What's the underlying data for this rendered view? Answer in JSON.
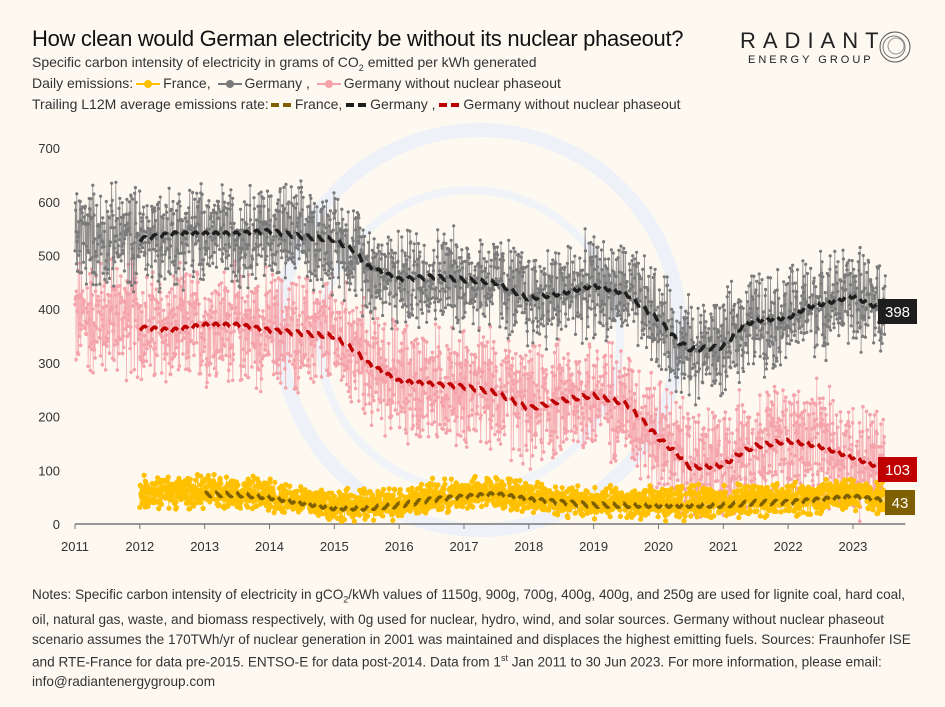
{
  "header": {
    "title": "How clean would German electricity be without its nuclear phaseout?",
    "subtitle_pre": "Specific carbon intensity of electricity in grams of CO",
    "subtitle_sub": "2",
    "subtitle_post": " emitted per kWh generated",
    "daily_label": "Daily emissions:",
    "daily_items": [
      "France,",
      "Germany ,",
      "Germany without nuclear phaseout"
    ],
    "trailing_label": "Trailing L12M average emissions rate:",
    "trailing_items": [
      "France,",
      "Germany ,",
      "Germany without nuclear phaseout"
    ]
  },
  "logo": {
    "line1": "RADIANT",
    "line2": "ENERGY GROUP"
  },
  "chart_data": {
    "type": "line",
    "title": "How clean would German electricity be without its nuclear phaseout?",
    "ylabel": "",
    "xlabel": "",
    "ylim": [
      0,
      700
    ],
    "xlim": [
      2011,
      2023.5
    ],
    "y_ticks": [
      "0",
      "100",
      "200",
      "300",
      "400",
      "500",
      "600",
      "700"
    ],
    "x_ticks": [
      "2011",
      "2012",
      "2013",
      "2014",
      "2015",
      "2016",
      "2017",
      "2018",
      "2019",
      "2020",
      "2021",
      "2022",
      "2023"
    ],
    "grid": false,
    "legend": "top",
    "colors": {
      "france_daily": "#ffc000",
      "germany_daily": "#7a7a7a",
      "nonphaseout_daily": "#f5a3aa",
      "france_avg": "#7f6000",
      "germany_avg": "#1e1e1e",
      "nonphaseout_avg": "#c00000"
    },
    "trailing_series": [
      {
        "name": "Germany",
        "x": [
          2012,
          2012.5,
          2013,
          2013.5,
          2014,
          2014.5,
          2015,
          2015.3,
          2015.5,
          2016,
          2016.5,
          2017,
          2017.5,
          2018,
          2018.5,
          2019,
          2019.5,
          2020,
          2020.3,
          2020.5,
          2021,
          2021.3,
          2021.5,
          2022,
          2022.3,
          2022.5,
          2023,
          2023.5
        ],
        "y": [
          530,
          540,
          540,
          540,
          545,
          535,
          530,
          510,
          480,
          455,
          460,
          455,
          450,
          420,
          430,
          445,
          430,
          380,
          340,
          325,
          330,
          370,
          380,
          385,
          405,
          410,
          425,
          398
        ]
      },
      {
        "name": "Germany without nuclear phaseout",
        "x": [
          2012,
          2012.5,
          2013,
          2013.5,
          2014,
          2014.5,
          2015,
          2015.3,
          2015.5,
          2016,
          2016.5,
          2017,
          2017.5,
          2018,
          2018.5,
          2019,
          2019.5,
          2020,
          2020.3,
          2020.5,
          2021,
          2021.3,
          2021.5,
          2022,
          2022.3,
          2022.5,
          2023,
          2023.5
        ],
        "y": [
          365,
          360,
          370,
          370,
          360,
          355,
          350,
          325,
          300,
          265,
          260,
          255,
          245,
          215,
          230,
          240,
          225,
          160,
          130,
          105,
          110,
          135,
          145,
          155,
          150,
          145,
          125,
          103
        ]
      },
      {
        "name": "France",
        "x": [
          2013,
          2013.5,
          2014,
          2014.5,
          2015,
          2015.5,
          2016,
          2016.5,
          2017,
          2017.5,
          2018,
          2018.5,
          2019,
          2019.5,
          2020,
          2020.5,
          2021,
          2021.5,
          2022,
          2022.5,
          2023,
          2023.5
        ],
        "y": [
          55,
          55,
          50,
          40,
          30,
          30,
          35,
          45,
          50,
          55,
          45,
          40,
          35,
          35,
          35,
          35,
          35,
          40,
          40,
          45,
          50,
          43
        ]
      }
    ],
    "daily_series": [
      {
        "name": "Germany",
        "start": 2011,
        "end": 2023.5,
        "typical_range": [
          200,
          680
        ]
      },
      {
        "name": "Germany without nuclear phaseout",
        "start": 2011,
        "end": 2023.5,
        "typical_range": [
          0,
          550
        ]
      },
      {
        "name": "France",
        "start": 2012,
        "end": 2023.5,
        "typical_range": [
          5,
          120
        ]
      }
    ],
    "end_labels": {
      "germany": "398",
      "nonphaseout": "103",
      "france": "43"
    }
  },
  "notes": {
    "p1": "Notes: Specific carbon intensity of electricity in gCO",
    "sub": "2",
    "p2": "/kWh values of 1150g, 900g, 700g, 400g, 400g, and 250g are used for lignite coal, hard coal, oil, natural gas, waste, and biomass respectively, with 0g used for nuclear, hydro, wind, and solar sources. Germany without nuclear phaseout scenario assumes the 170TWh/yr of nuclear generation in 2001 was maintained and displaces the highest emitting fuels. Sources: Fraunhofer ISE and RTE-France for data pre-2015. ENTSO-E for data post-2014. Data from 1",
    "sup": "st",
    "p3": " Jan 2011 to 30 Jun 2023. For more information, please email: info@radiantenergygroup.com"
  }
}
